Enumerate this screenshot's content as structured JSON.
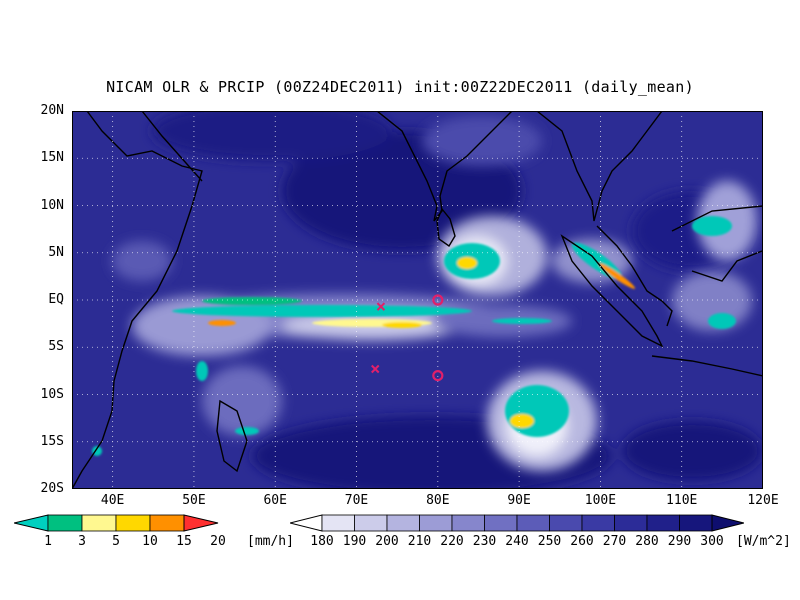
{
  "title": "NICAM OLR & PRCIP (00Z24DEC2011) init:00Z22DEC2011 (daily_mean)",
  "map": {
    "lon_range": [
      35,
      120
    ],
    "lat_range": [
      -20,
      20
    ],
    "y_ticks": [
      "20N",
      "15N",
      "10N",
      "5N",
      "EQ",
      "5S",
      "10S",
      "15S",
      "20S"
    ],
    "x_ticks": [
      "40E",
      "50E",
      "60E",
      "70E",
      "80E",
      "90E",
      "100E",
      "110E",
      "120E"
    ],
    "background_color": "#2a2a8e",
    "grid": "dotted",
    "markers": [
      {
        "type": "x",
        "lon": 73,
        "lat": -0.7,
        "color": "#e0206a"
      },
      {
        "type": "x",
        "lon": 72.3,
        "lat": -7.3,
        "color": "#e0206a"
      },
      {
        "type": "circle",
        "lon": 80,
        "lat": 0,
        "color": "#e0206a"
      },
      {
        "type": "circle",
        "lon": 80,
        "lat": -8,
        "color": "#e0206a"
      }
    ]
  },
  "precip_legend": {
    "labels": [
      "1",
      "3",
      "5",
      "10",
      "15",
      "20"
    ],
    "unit": "[mm/h]",
    "colors": [
      "#00d0c0",
      "#00c080",
      "#fff890",
      "#ffd800",
      "#ff9000",
      "#ff3030"
    ]
  },
  "olr_legend": {
    "labels": [
      "180",
      "190",
      "200",
      "210",
      "220",
      "230",
      "240",
      "250",
      "260",
      "270",
      "280",
      "290",
      "300"
    ],
    "unit": "[W/m^2]",
    "colors": [
      "#ffffff",
      "#e4e4f4",
      "#ccccea",
      "#b4b4e0",
      "#9c9cd6",
      "#8686cc",
      "#7070c2",
      "#5c5cb8",
      "#4a4aae",
      "#3a3aa4",
      "#2c2c98",
      "#20208a",
      "#16167c",
      "#0e0e6e"
    ]
  }
}
